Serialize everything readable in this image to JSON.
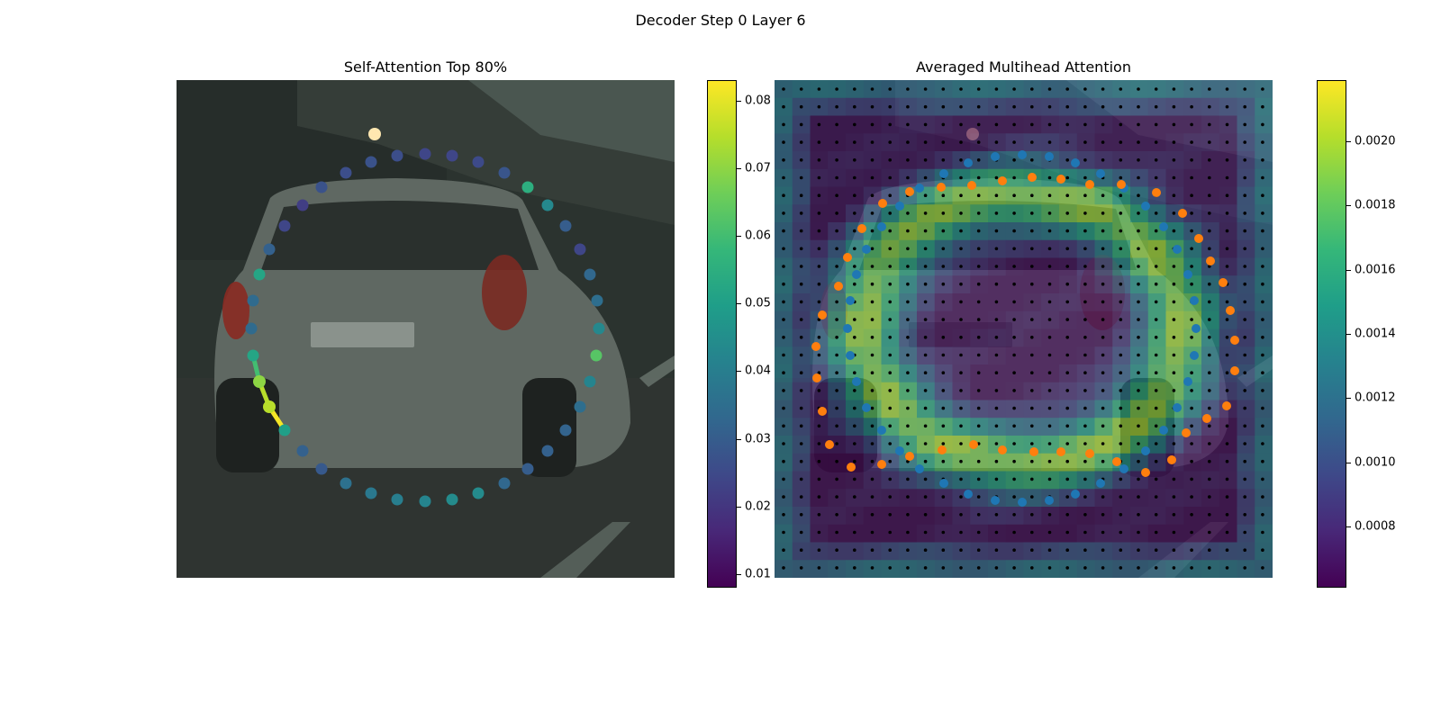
{
  "figure_title": "Decoder Step 0 Layer 6",
  "colors": {
    "viridis": [
      "#440154",
      "#482878",
      "#3e4989",
      "#31688e",
      "#26828e",
      "#1f9e89",
      "#35b779",
      "#6ece58",
      "#b5de2b",
      "#fde725"
    ],
    "blue_points": "#1f77b4",
    "orange_points": "#ff7f0e",
    "grid_points": "#000000"
  },
  "chart_data": [
    {
      "type": "scatter",
      "title": "Self-Attention Top 80%",
      "background": "photo-of-car-rear-view",
      "colorbar": {
        "min": 0.008,
        "max": 0.083,
        "ticks": [
          "0.01",
          "0.02",
          "0.03",
          "0.04",
          "0.05",
          "0.06",
          "0.07",
          "0.08"
        ]
      },
      "series": [
        {
          "x": [
            472,
            502,
            531,
            560,
            586,
            608,
            628,
            644,
            655,
            663,
            665,
            662,
            655,
            644,
            628,
            608,
            586,
            560,
            531,
            502,
            472,
            441,
            412,
            384,
            357,
            336,
            316,
            299,
            288,
            281,
            279,
            281,
            288,
            299,
            316,
            336,
            357,
            384,
            412,
            441
          ],
          "y": [
            171,
            173,
            180,
            192,
            208,
            228,
            251,
            277,
            305,
            334,
            365,
            395,
            424,
            452,
            478,
            501,
            521,
            537,
            548,
            555,
            557,
            555,
            548,
            537,
            521,
            501,
            478,
            452,
            424,
            395,
            365,
            334,
            305,
            277,
            251,
            228,
            208,
            192,
            180,
            173
          ],
          "values": [
            0.024,
            0.024,
            0.025,
            0.028,
            0.055,
            0.043,
            0.03,
            0.024,
            0.033,
            0.035,
            0.043,
            0.063,
            0.042,
            0.035,
            0.032,
            0.031,
            0.03,
            0.033,
            0.044,
            0.044,
            0.042,
            0.04,
            0.038,
            0.036,
            0.029,
            0.031,
            0.05,
            0.075,
            0.07,
            0.052,
            0.034,
            0.034,
            0.052,
            0.031,
            0.024,
            0.022,
            0.027,
            0.026,
            0.027,
            0.026
          ]
        }
      ],
      "highlight_path": [
        {
          "x": [
            281,
            288
          ],
          "y": [
            395,
            424
          ],
          "value": 0.06
        },
        {
          "x": [
            288,
            299
          ],
          "y": [
            424,
            452
          ],
          "value": 0.075
        },
        {
          "x": [
            299,
            316
          ],
          "y": [
            452,
            478
          ],
          "value": 0.082
        }
      ]
    },
    {
      "type": "heatmap",
      "title": "Averaged Multihead Attention",
      "background": "photo-of-car-rear-view",
      "colorbar": {
        "min": 0.00061,
        "max": 0.00219,
        "ticks": [
          "0.0008",
          "0.0010",
          "0.0012",
          "0.0014",
          "0.0016",
          "0.0018",
          "0.0020"
        ]
      },
      "heatmap": {
        "rows": 28,
        "cols": 28
      },
      "series": [
        {
          "name": "blue",
          "x": [
            1135,
            1165,
            1194,
            1222,
            1248,
            1272,
            1292,
            1307,
            1319,
            1326,
            1328,
            1326,
            1319,
            1307,
            1292,
            1272,
            1248,
            1222,
            1194,
            1165,
            1135,
            1105,
            1075,
            1048,
            1021,
            999,
            979,
            962,
            951,
            944,
            941,
            944,
            951,
            962,
            979,
            999,
            1021,
            1048,
            1075,
            1105
          ],
          "y": [
            172,
            174,
            181,
            193,
            209,
            229,
            252,
            277,
            305,
            334,
            365,
            395,
            424,
            453,
            478,
            501,
            521,
            537,
            549,
            556,
            558,
            556,
            549,
            537,
            521,
            501,
            478,
            453,
            424,
            395,
            365,
            334,
            305,
            277,
            252,
            229,
            209,
            193,
            181,
            174
          ]
        },
        {
          "name": "orange",
          "x": [
            1146,
            1178,
            1210,
            1245,
            1284,
            1313,
            1331,
            1344,
            1358,
            1366,
            1371,
            1371,
            1362,
            1340,
            1317,
            1301,
            1272,
            1240,
            1210,
            1178,
            1148,
            1113,
            1081,
            1046,
            1010,
            979,
            945,
            921,
            913,
            907,
            906,
            913,
            931,
            941,
            957,
            980,
            1010,
            1045,
            1079,
            1113
          ],
          "y": [
            197,
            199,
            205,
            205,
            214,
            237,
            265,
            290,
            314,
            345,
            378,
            412,
            451,
            465,
            481,
            511,
            525,
            513,
            504,
            502,
            502,
            500,
            494,
            500,
            507,
            516,
            519,
            494,
            457,
            420,
            385,
            350,
            318,
            286,
            254,
            226,
            213,
            208,
            206,
            201
          ]
        }
      ]
    }
  ]
}
